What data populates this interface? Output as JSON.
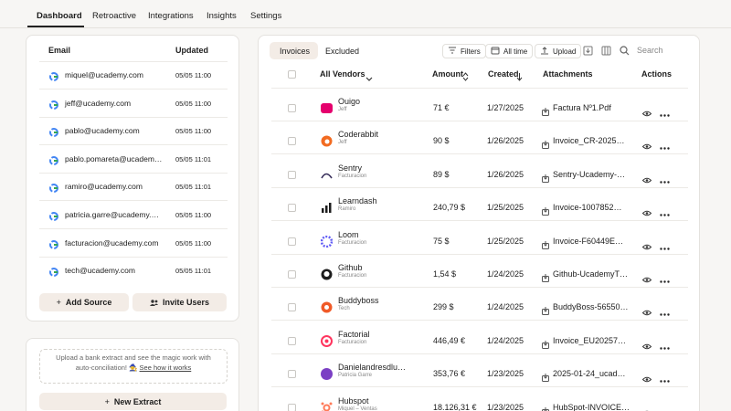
{
  "nav": {
    "tabs": [
      "Dashboard",
      "Retroactive",
      "Integrations",
      "Insights",
      "Settings"
    ]
  },
  "accounts": {
    "headers": [
      "Email",
      "Updated"
    ],
    "rows": [
      [
        "miquel@ucademy.com",
        "05/05 11:00"
      ],
      [
        "jeff@ucademy.com",
        "05/05 11:00"
      ],
      [
        "pablo@ucademy.com",
        "05/05 11:00"
      ],
      [
        "pablo.pomareta@ucadem…",
        "05/05 11:01"
      ],
      [
        "ramiro@ucademy.com",
        "05/05 11:01"
      ],
      [
        "patricia.garre@ucademy.…",
        "05/05 11:00"
      ],
      [
        "facturacion@ucademy.com",
        "05/05 11:00"
      ],
      [
        "tech@ucademy.com",
        "05/05 11:01"
      ]
    ],
    "buttons": [
      "Add Source",
      "Invite Users"
    ]
  },
  "extract": {
    "text": "Upload a bank extract and see the magic work with auto-conciliation! 🧙",
    "link": "See how it works",
    "button": "New Extract"
  },
  "invoices": {
    "tabs": [
      "Invoices",
      "Excluded"
    ],
    "toolbar": [
      "Filters",
      "All time",
      "Upload"
    ],
    "search": "Search",
    "headers": [
      "All Vendors",
      "Amount",
      "Created",
      "Attachments",
      "Actions"
    ],
    "rows": [
      {
        "vendor": "Ouigo",
        "owner": "Jeff",
        "amount": "71 €",
        "created": "1/27/2025",
        "attachment": "Factura Nº1.Pdf"
      },
      {
        "vendor": "Coderabbit",
        "owner": "Jeff",
        "amount": "90 $",
        "created": "1/26/2025",
        "attachment": "Invoice_CR-2025…"
      },
      {
        "vendor": "Sentry",
        "owner": "Facturacion",
        "amount": "89 $",
        "created": "1/26/2025",
        "attachment": "Sentry-Ucademy-…"
      },
      {
        "vendor": "Learndash",
        "owner": "Ramiro",
        "amount": "240,79 $",
        "created": "1/25/2025",
        "attachment": "Invoice-1007852…"
      },
      {
        "vendor": "Loom",
        "owner": "Facturacion",
        "amount": "75 $",
        "created": "1/25/2025",
        "attachment": "Invoice-F60449E…"
      },
      {
        "vendor": "Github",
        "owner": "Facturacion",
        "amount": "1,54 $",
        "created": "1/24/2025",
        "attachment": "Github-UcademyT…"
      },
      {
        "vendor": "Buddyboss",
        "owner": "Tech",
        "amount": "299 $",
        "created": "1/24/2025",
        "attachment": "BuddyBoss-56550…"
      },
      {
        "vendor": "Factorial",
        "owner": "Facturacion",
        "amount": "446,49 €",
        "created": "1/24/2025",
        "attachment": "Invoice_EU20257…"
      },
      {
        "vendor": "Danielandresdlu…",
        "owner": "Patricia Garre",
        "amount": "353,76 €",
        "created": "1/23/2025",
        "attachment": "2025-01-24_ucad…"
      },
      {
        "vendor": "Hubspot",
        "owner": "Miquel – Ventas",
        "amount": "18.126,31 €",
        "created": "1/23/2025",
        "attachment": "HubSpot-INVOICE…"
      }
    ]
  }
}
